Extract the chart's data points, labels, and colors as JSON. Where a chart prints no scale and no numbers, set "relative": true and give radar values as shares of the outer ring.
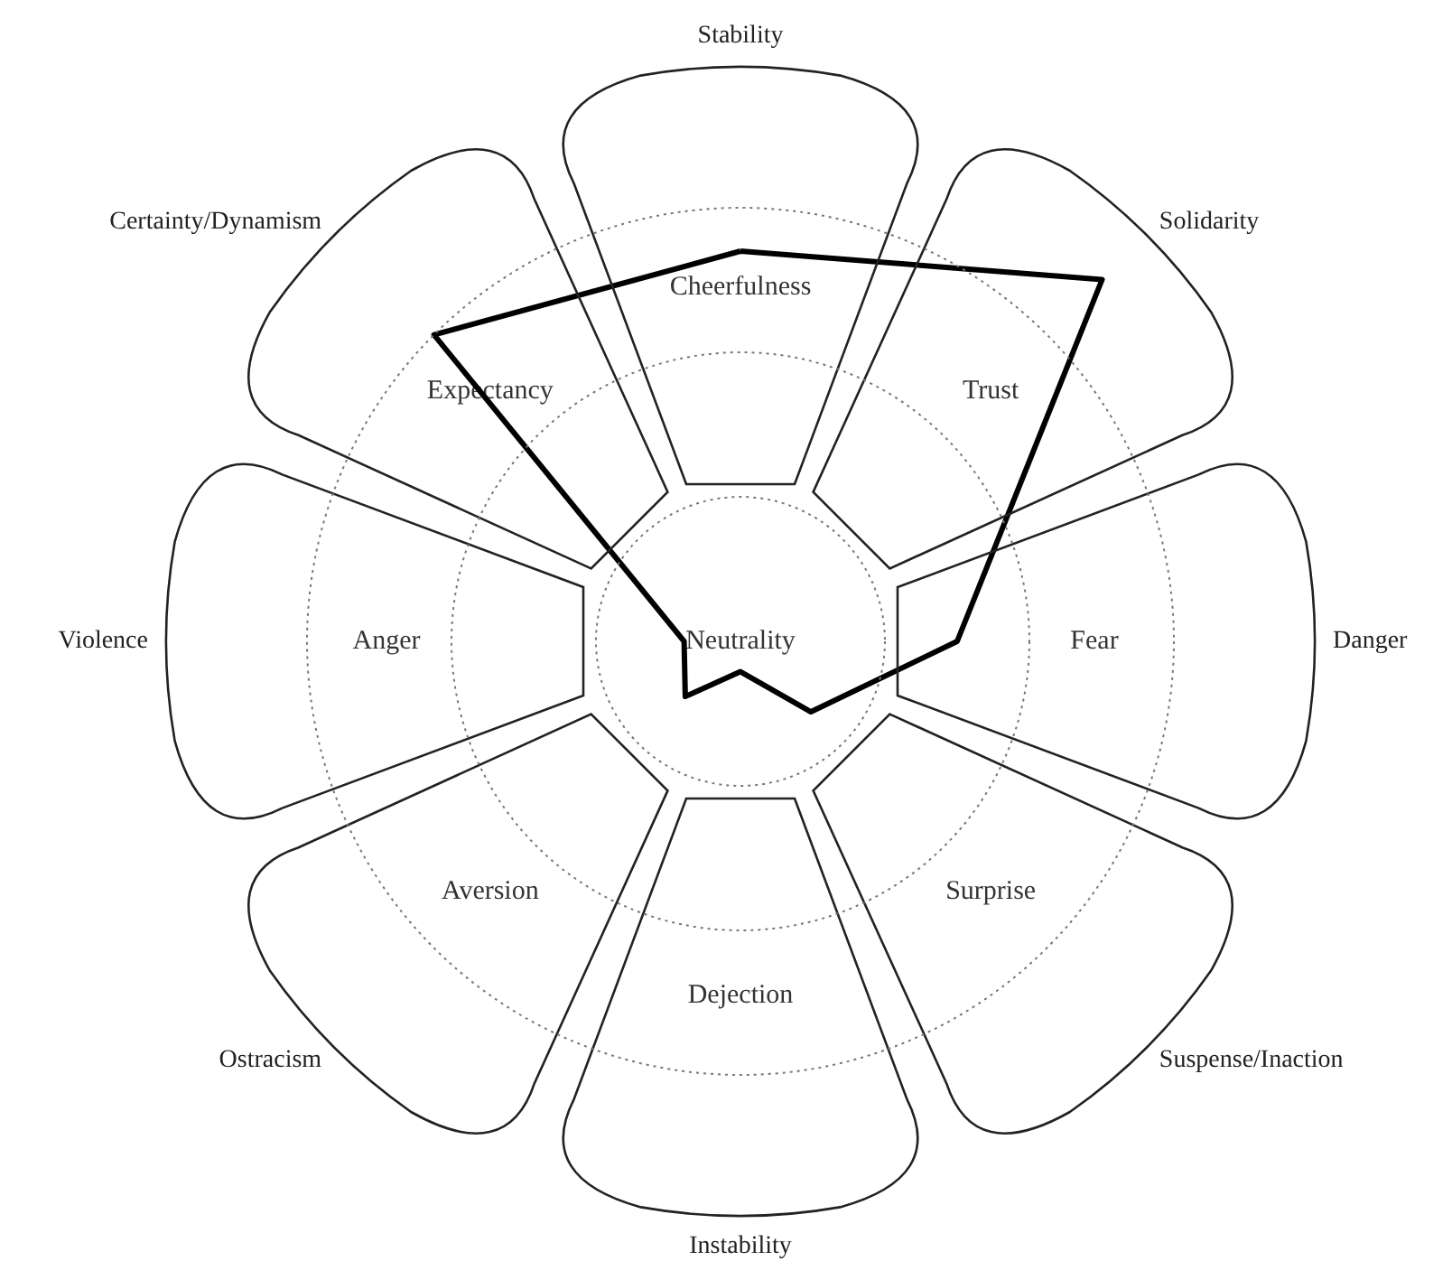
{
  "chart_data": {
    "type": "radar",
    "relative": true,
    "categories": [
      "Stability",
      "Solidarity",
      "Danger",
      "Suspense/Inaction",
      "Instability",
      "Ostracism",
      "Violence",
      "Certainty/Dynamism"
    ],
    "series": [
      {
        "color": "#000000",
        "values": [
          0.9,
          1.18,
          0.5,
          0.23,
          0.07,
          0.18,
          0.13,
          1
        ]
      }
    ],
    "annotations": [
      "Cheerfulness",
      "Trust",
      "Fear",
      "Surprise",
      "Dejection",
      "Aversion",
      "Anger",
      "Expectancy",
      "Neutrality"
    ],
    "marker": "none",
    "line_style": "solid"
  }
}
